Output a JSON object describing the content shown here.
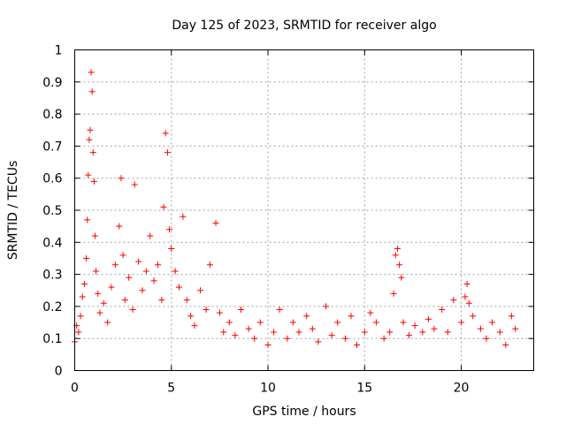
{
  "chart_data": {
    "type": "scatter",
    "title": "Day 125 of 2023, SRMTID for receiver algo",
    "xlabel": "GPS time / hours",
    "ylabel": "SRMTID / TECUs",
    "xlim": [
      0,
      23.75
    ],
    "ylim": [
      0,
      1
    ],
    "xticks": [
      0,
      5,
      10,
      15,
      20
    ],
    "xtick_labels": [
      "0",
      "5",
      "10",
      "15",
      "20"
    ],
    "yticks": [
      0,
      0.1,
      0.2,
      0.3,
      0.4,
      0.5,
      0.6,
      0.7,
      0.8,
      0.9,
      1
    ],
    "ytick_labels": [
      "0",
      "0.1",
      "0.2",
      "0.3",
      "0.4",
      "0.5",
      "0.6",
      "0.7",
      "0.8",
      "0.9",
      "1"
    ],
    "grid": true,
    "marker": "+",
    "series": [
      {
        "name": "SRMTID",
        "color": "#ff0000",
        "x": [
          0.0,
          0.1,
          0.2,
          0.3,
          0.4,
          0.5,
          0.6,
          0.65,
          0.7,
          0.75,
          0.8,
          0.85,
          0.9,
          0.95,
          1.0,
          1.05,
          1.1,
          1.2,
          1.3,
          1.5,
          1.7,
          1.9,
          2.1,
          2.3,
          2.4,
          2.5,
          2.6,
          2.8,
          3.0,
          3.1,
          3.3,
          3.5,
          3.7,
          3.9,
          4.1,
          4.3,
          4.5,
          4.6,
          4.7,
          4.8,
          4.9,
          5.0,
          5.2,
          5.4,
          5.6,
          5.8,
          6.0,
          6.2,
          6.5,
          6.8,
          7.0,
          7.3,
          7.5,
          7.7,
          8.0,
          8.3,
          8.6,
          9.0,
          9.3,
          9.6,
          10.0,
          10.3,
          10.6,
          11.0,
          11.3,
          11.6,
          12.0,
          12.3,
          12.6,
          13.0,
          13.3,
          13.6,
          14.0,
          14.3,
          14.6,
          15.0,
          15.3,
          15.6,
          16.0,
          16.3,
          16.5,
          16.6,
          16.7,
          16.8,
          16.9,
          17.0,
          17.3,
          17.6,
          18.0,
          18.3,
          18.6,
          19.0,
          19.3,
          19.6,
          20.0,
          20.2,
          20.3,
          20.4,
          20.6,
          21.0,
          21.3,
          21.6,
          22.0,
          22.3,
          22.6,
          22.8
        ],
        "y": [
          0.09,
          0.14,
          0.12,
          0.17,
          0.23,
          0.27,
          0.35,
          0.47,
          0.61,
          0.72,
          0.75,
          0.93,
          0.87,
          0.68,
          0.59,
          0.42,
          0.31,
          0.24,
          0.18,
          0.21,
          0.15,
          0.26,
          0.33,
          0.45,
          0.6,
          0.36,
          0.22,
          0.29,
          0.19,
          0.58,
          0.34,
          0.25,
          0.31,
          0.42,
          0.28,
          0.33,
          0.22,
          0.51,
          0.74,
          0.68,
          0.44,
          0.38,
          0.31,
          0.26,
          0.48,
          0.22,
          0.17,
          0.14,
          0.25,
          0.19,
          0.33,
          0.46,
          0.18,
          0.12,
          0.15,
          0.11,
          0.19,
          0.13,
          0.1,
          0.15,
          0.08,
          0.12,
          0.19,
          0.1,
          0.15,
          0.12,
          0.17,
          0.13,
          0.09,
          0.2,
          0.11,
          0.15,
          0.1,
          0.17,
          0.08,
          0.12,
          0.18,
          0.15,
          0.1,
          0.12,
          0.24,
          0.36,
          0.38,
          0.33,
          0.29,
          0.15,
          0.11,
          0.14,
          0.12,
          0.16,
          0.13,
          0.19,
          0.12,
          0.22,
          0.15,
          0.23,
          0.27,
          0.21,
          0.17,
          0.13,
          0.1,
          0.15,
          0.12,
          0.08,
          0.17,
          0.13
        ]
      }
    ]
  }
}
